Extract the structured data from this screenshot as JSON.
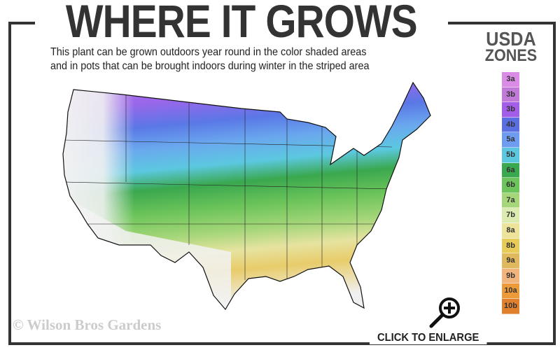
{
  "header": {
    "title": "WHERE IT GROWS",
    "subtitle_lines": [
      "This plant can be grown outdoors year round in the color shaded areas",
      "and in pots that can be brought indoors during winter in the striped area"
    ]
  },
  "legend": {
    "title_line1": "USDA",
    "title_line2": "ZONES",
    "zones": [
      {
        "label": "3a",
        "color": "#d98be6"
      },
      {
        "label": "3b",
        "color": "#c27ad8"
      },
      {
        "label": "3b",
        "color": "#a25ee8"
      },
      {
        "label": "4b",
        "color": "#5a6fe0"
      },
      {
        "label": "5a",
        "color": "#6d9cf0"
      },
      {
        "label": "5b",
        "color": "#5cc8e0"
      },
      {
        "label": "6a",
        "color": "#3aa84e"
      },
      {
        "label": "6b",
        "color": "#6cc45a"
      },
      {
        "label": "7a",
        "color": "#a6d67a"
      },
      {
        "label": "7b",
        "color": "#dcebb0"
      },
      {
        "label": "8a",
        "color": "#ede39a"
      },
      {
        "label": "8b",
        "color": "#e8cc5a"
      },
      {
        "label": "9a",
        "color": "#e0b85e"
      },
      {
        "label": "9b",
        "color": "#f0b47c"
      },
      {
        "label": "10a",
        "color": "#ec9a3a"
      },
      {
        "label": "10b",
        "color": "#e07f2c"
      }
    ]
  },
  "map": {
    "region": "Contiguous United States",
    "frame_color": "#333333"
  },
  "footer": {
    "watermark": "© Wilson Bros Gardens",
    "enlarge_label": "CLICK TO ENLARGE",
    "enlarge_icon": "zoom-in-magnifier-icon"
  }
}
